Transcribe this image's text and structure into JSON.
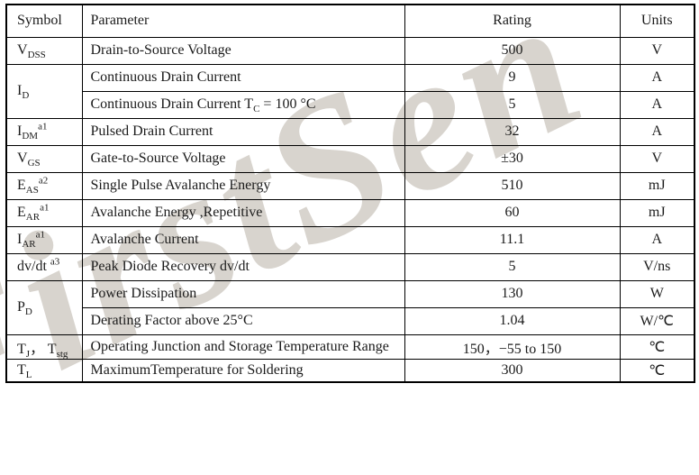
{
  "watermark": {
    "text": "FirstSen",
    "color": "#d8d4ce"
  },
  "table": {
    "headers": [
      "Symbol",
      "Parameter",
      "Rating",
      "Units"
    ],
    "rows": [
      {
        "symbol": [
          {
            "t": "V"
          },
          {
            "sub": "DSS"
          }
        ],
        "parameter": [
          {
            "t": "Drain-to-Source Voltage"
          }
        ],
        "rating": "500",
        "units": "V"
      },
      {
        "symbol": [
          {
            "t": "I"
          },
          {
            "sub": "D"
          }
        ],
        "rowspan": 2,
        "parameter": [
          {
            "t": "Continuous Drain Current"
          }
        ],
        "rating": "9",
        "units": "A"
      },
      {
        "symbol": null,
        "parameter": [
          {
            "t": "Continuous Drain Current T"
          },
          {
            "sub": "C"
          },
          {
            "t": " = 100 °C"
          }
        ],
        "rating": "5",
        "units": "A"
      },
      {
        "symbol": [
          {
            "t": "I"
          },
          {
            "sub": "DM"
          },
          {
            "sup": "a1"
          }
        ],
        "parameter": [
          {
            "t": "Pulsed Drain Current"
          }
        ],
        "rating": "32",
        "units": "A"
      },
      {
        "symbol": [
          {
            "t": "V"
          },
          {
            "sub": "GS"
          }
        ],
        "parameter": [
          {
            "t": "Gate-to-Source Voltage"
          }
        ],
        "rating": "±30",
        "units": "V"
      },
      {
        "symbol": [
          {
            "t": "E"
          },
          {
            "sub": "AS"
          },
          {
            "sup": "a2"
          }
        ],
        "parameter": [
          {
            "t": "Single Pulse Avalanche Energy"
          }
        ],
        "rating": "510",
        "units": "mJ"
      },
      {
        "symbol": [
          {
            "t": "E"
          },
          {
            "sub": "AR"
          },
          {
            "sup": "a1"
          }
        ],
        "parameter": [
          {
            "t": "Avalanche Energy ,Repetitive"
          }
        ],
        "rating": "60",
        "units": "mJ"
      },
      {
        "symbol": [
          {
            "t": "I"
          },
          {
            "sub": "AR"
          },
          {
            "sup": "a1"
          }
        ],
        "parameter": [
          {
            "t": "Avalanche Current"
          }
        ],
        "rating": "11.1",
        "units": "A"
      },
      {
        "symbol": [
          {
            "t": "dv/dt "
          },
          {
            "sup": "a3"
          }
        ],
        "parameter": [
          {
            "t": "Peak Diode Recovery dv/dt"
          }
        ],
        "rating": "5",
        "units": "V/ns"
      },
      {
        "symbol": [
          {
            "t": "P"
          },
          {
            "sub": "D"
          }
        ],
        "rowspan": 2,
        "parameter": [
          {
            "t": "Power Dissipation"
          }
        ],
        "rating": "130",
        "units": "W"
      },
      {
        "symbol": null,
        "parameter": [
          {
            "t": "Derating Factor above 25°C"
          }
        ],
        "rating": "1.04",
        "units": "W/℃"
      },
      {
        "symbol": [
          {
            "t": "T"
          },
          {
            "sub": "J"
          },
          {
            "t": "，  T"
          },
          {
            "sub": "stg"
          }
        ],
        "parameter": [
          {
            "t": "Operating Junction and Storage Temperature Range"
          }
        ],
        "rating": "150，−55 to 150",
        "units": "℃"
      },
      {
        "symbol": [
          {
            "t": "T"
          },
          {
            "sub": "L"
          }
        ],
        "parameter": [
          {
            "t": "MaximumTemperature for Soldering"
          }
        ],
        "rating": "300",
        "units": "℃"
      }
    ]
  }
}
